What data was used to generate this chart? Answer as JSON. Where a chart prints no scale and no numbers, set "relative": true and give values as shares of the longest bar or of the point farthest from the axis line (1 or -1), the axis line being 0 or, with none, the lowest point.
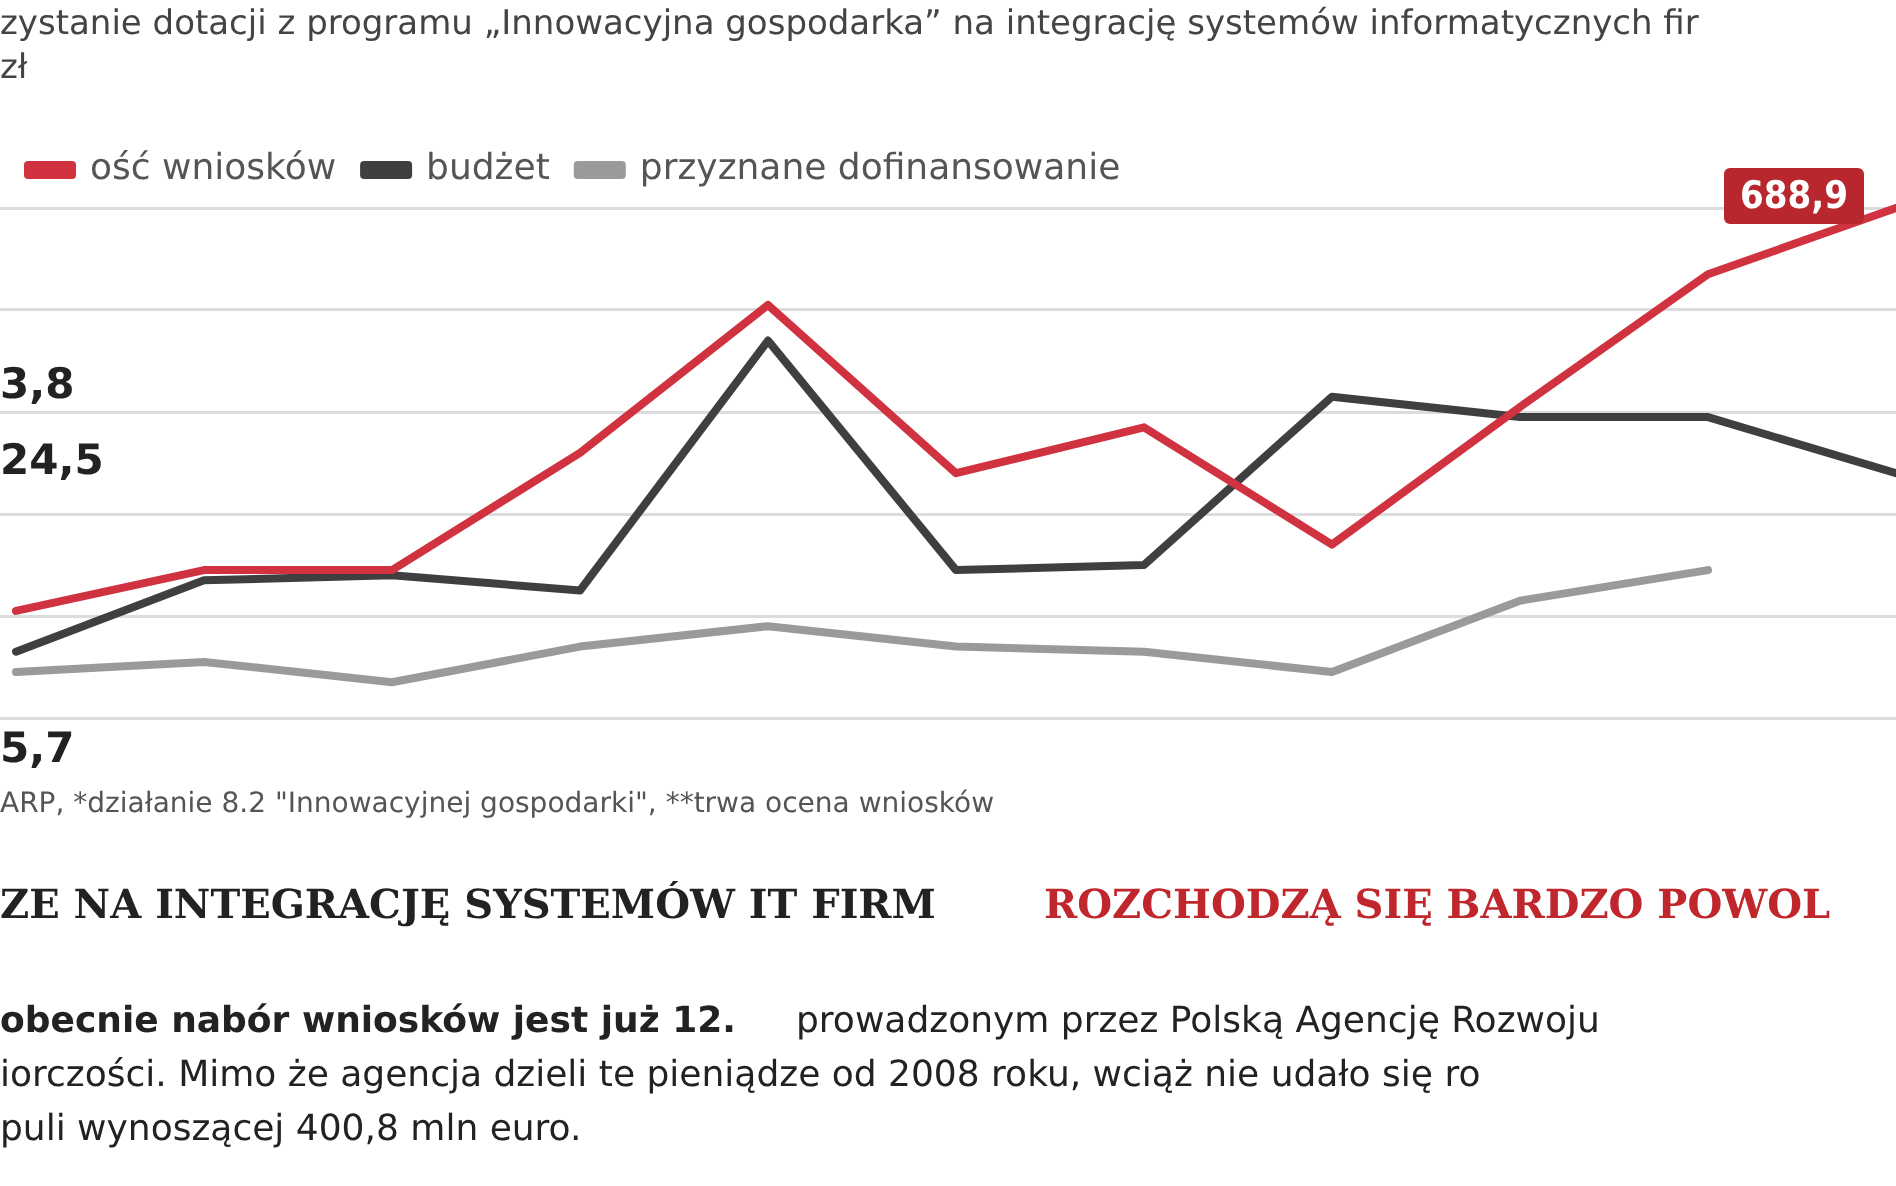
{
  "chart_data": {
    "type": "line",
    "title": "zystanie dotacji z programu „Innowacyjna gospodarka” na integrację systemów informatycznych fir",
    "subtitle": "zł",
    "relative": true,
    "grid": "y",
    "legend": "top left",
    "marker": "none",
    "categories": [
      null,
      null,
      null,
      null,
      null,
      null,
      null,
      null,
      null,
      null,
      null
    ],
    "series": [
      {
        "name": "ość wniosków",
        "color": "#d0323f",
        "values": [
          0.21,
          0.29,
          0.29,
          0.52,
          0.81,
          0.48,
          0.57,
          0.34,
          0.61,
          0.87,
          1
        ]
      },
      {
        "name": "budżet",
        "color": "#3f3f42",
        "values": [
          0.13,
          0.27,
          0.28,
          0.25,
          0.74,
          0.29,
          0.3,
          0.63,
          0.59,
          0.59,
          0.48
        ]
      },
      {
        "name": "przyznane dofinansowanie",
        "color": "#9a9a9c",
        "values": [
          0.09,
          0.11,
          0.07,
          0.14,
          0.18,
          0.14,
          0.13,
          0.09,
          0.23,
          0.29,
          null
        ]
      }
    ],
    "annotations": [
      "688,9",
      "3,8",
      "24,5",
      "5,7",
      "ARP, *działanie 8.2 \"Innowacyjnej gospodarki\", **trwa ocena wniosków",
      "ZE NA INTEGRACJĘ SYSTEMÓW IT FIRM",
      "ROZCHODZĄ SIĘ BARDZO POWOL",
      "obecnie nabór wniosków jest już 12.",
      "prowadzonym przez Polską Agencję Rozwoju",
      "iorczości. Mimo że agencja dzieli te pieniądze od 2008 roku, wciąż nie udało się ro",
      "puli wynoszącej 400,8 mln euro."
    ]
  }
}
